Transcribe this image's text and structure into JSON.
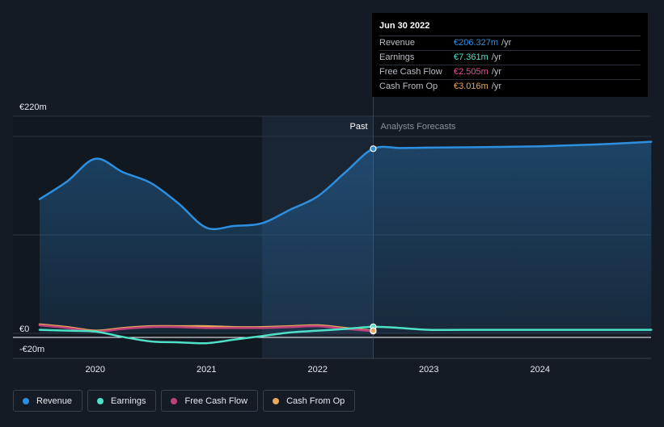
{
  "chart_data": {
    "type": "line",
    "x_ticks": [
      "2020",
      "2021",
      "2022",
      "2023",
      "2024"
    ],
    "y_ticks": [
      "€220m",
      "€0",
      "-€20m"
    ],
    "ylim": [
      -20,
      220
    ],
    "xlim": [
      2019.5,
      2025.0
    ],
    "past_label": "Past",
    "forecast_label": "Analysts Forecasts",
    "past_end": 2022.5,
    "shaded_region_start": 2021.5,
    "series": [
      {
        "name": "Revenue",
        "color": "#2d8fe0",
        "x": [
          2019.5,
          2019.75,
          2020.0,
          2020.25,
          2020.5,
          2020.75,
          2021.0,
          2021.25,
          2021.5,
          2021.75,
          2022.0,
          2022.25,
          2022.5,
          2022.75,
          2023.0,
          2023.5,
          2024.0,
          2024.5,
          2025.0
        ],
        "values": [
          150,
          170,
          195,
          180,
          168,
          145,
          118,
          120,
          123,
          138,
          153,
          180,
          206.3,
          207,
          207.5,
          208,
          209,
          211,
          214
        ]
      },
      {
        "name": "Earnings",
        "color": "#4fe0c8",
        "x": [
          2019.5,
          2019.75,
          2020.0,
          2020.25,
          2020.5,
          2020.75,
          2021.0,
          2021.25,
          2021.5,
          2021.75,
          2022.0,
          2022.25,
          2022.5,
          2022.75,
          2023.0,
          2023.5,
          2024.0,
          2024.5,
          2025.0
        ],
        "values": [
          4,
          3,
          2,
          -4,
          -9,
          -10,
          -11,
          -7,
          -3,
          1,
          3,
          5,
          7.361,
          6,
          4,
          4,
          4,
          4,
          4
        ]
      },
      {
        "name": "Free Cash Flow",
        "color": "#c0407a",
        "x": [
          2019.5,
          2019.75,
          2020.0,
          2020.25,
          2020.5,
          2020.75,
          2021.0,
          2021.25,
          2021.5,
          2021.75,
          2022.0,
          2022.25,
          2022.5
        ],
        "values": [
          9,
          6,
          2,
          5,
          7,
          7,
          6,
          6,
          6,
          7,
          8,
          5,
          2.505
        ]
      },
      {
        "name": "Cash From Op",
        "color": "#e9a85a",
        "x": [
          2019.5,
          2019.75,
          2020.0,
          2020.25,
          2020.5,
          2020.75,
          2021.0,
          2021.25,
          2021.5,
          2021.75,
          2022.0,
          2022.25,
          2022.5
        ],
        "values": [
          10,
          7,
          3,
          6,
          8,
          8,
          8,
          7,
          7,
          8,
          9,
          6,
          3.016
        ]
      }
    ]
  },
  "tooltip": {
    "date": "Jun 30 2022",
    "rows": [
      {
        "label": "Revenue",
        "value": "€206.327m",
        "unit": "/yr",
        "color": "#2d8fe0"
      },
      {
        "label": "Earnings",
        "value": "€7.361m",
        "unit": "/yr",
        "color": "#4fe0c8"
      },
      {
        "label": "Free Cash Flow",
        "value": "€2.505m",
        "unit": "/yr",
        "color": "#e0509a"
      },
      {
        "label": "Cash From Op",
        "value": "€3.016m",
        "unit": "/yr",
        "color": "#e9a85a"
      }
    ]
  },
  "legend": [
    {
      "label": "Revenue",
      "color": "#2d8fe0"
    },
    {
      "label": "Earnings",
      "color": "#4fe0c8"
    },
    {
      "label": "Free Cash Flow",
      "color": "#c0407a"
    },
    {
      "label": "Cash From Op",
      "color": "#e9a85a"
    }
  ]
}
